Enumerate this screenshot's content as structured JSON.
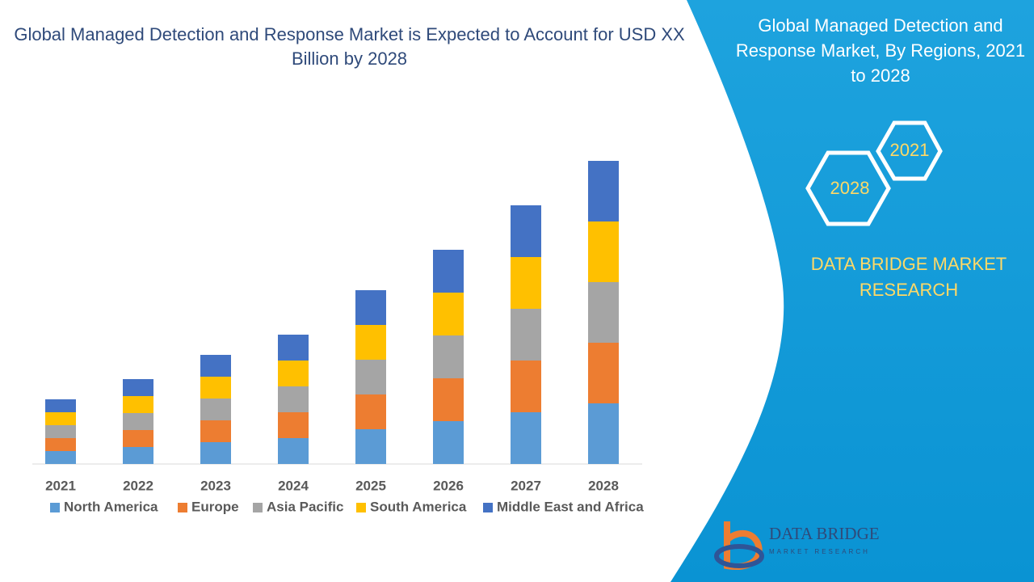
{
  "chart_data": {
    "type": "stacked-bar",
    "title": "Global Managed Detection and Response Market is Expected to Account for USD XX Billion by 2028",
    "categories": [
      "2021",
      "2022",
      "2023",
      "2024",
      "2025",
      "2026",
      "2027",
      "2028"
    ],
    "series": [
      {
        "name": "North America",
        "color": "#5b9bd5",
        "values": [
          16,
          21,
          27,
          32,
          43,
          53,
          64,
          75
        ]
      },
      {
        "name": "Europe",
        "color": "#ed7d31",
        "values": [
          16,
          21,
          27,
          32,
          43,
          53,
          64,
          75
        ]
      },
      {
        "name": "Asia Pacific",
        "color": "#a5a5a5",
        "values": [
          16,
          21,
          27,
          32,
          43,
          53,
          64,
          75
        ]
      },
      {
        "name": "South America",
        "color": "#ffc000",
        "values": [
          16,
          21,
          27,
          32,
          43,
          53,
          64,
          75
        ]
      },
      {
        "name": "Middle East and Africa",
        "color": "#4472c4",
        "values": [
          16,
          21,
          27,
          32,
          43,
          53,
          64,
          75
        ]
      }
    ]
  },
  "panel": {
    "title": "Global Managed Detection and Response Market, By Regions, 2021 to 2028",
    "hexagons": [
      "2021",
      "2028"
    ],
    "brand": "DATA BRIDGE MARKET RESEARCH",
    "logo": {
      "name": "DATA BRIDGE",
      "tagline": "MARKET RESEARCH"
    }
  }
}
